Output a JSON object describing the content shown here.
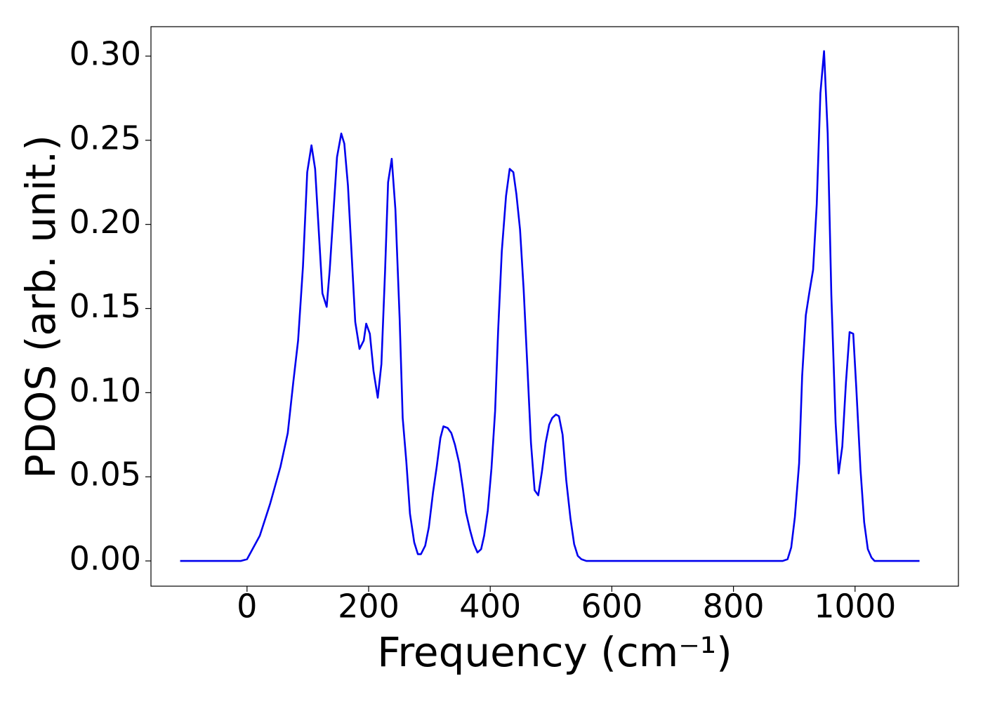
{
  "chart_data": {
    "type": "line",
    "x_label": "Frequency (cm⁻¹)",
    "y_label": "PDOS (arb. unit.)",
    "color": "#0000ee",
    "x": [
      -110,
      -10,
      0,
      21,
      38,
      55,
      67,
      76,
      84,
      92,
      99,
      106,
      112,
      124,
      131,
      136,
      148,
      155,
      160,
      166,
      178,
      185,
      192,
      196,
      202,
      208,
      215,
      221,
      227,
      232,
      238,
      244,
      251,
      256,
      262,
      268,
      275,
      281,
      286,
      293,
      299,
      306,
      312,
      318,
      323,
      330,
      336,
      342,
      349,
      355,
      360,
      367,
      373,
      379,
      385,
      390,
      396,
      402,
      408,
      413,
      419,
      426,
      432,
      438,
      443,
      449,
      455,
      461,
      467,
      473,
      479,
      485,
      491,
      497,
      502,
      508,
      513,
      519,
      525,
      532,
      538,
      544,
      550,
      558,
      881,
      889,
      895,
      901,
      908,
      913,
      919,
      925,
      931,
      937,
      943,
      949,
      955,
      961,
      968,
      973,
      979,
      985,
      991,
      997,
      1002,
      1009,
      1015,
      1021,
      1027,
      1032,
      1106
    ],
    "values": [
      0,
      0,
      0.001,
      0.015,
      0.034,
      0.056,
      0.076,
      0.106,
      0.131,
      0.175,
      0.231,
      0.247,
      0.233,
      0.159,
      0.151,
      0.173,
      0.24,
      0.254,
      0.248,
      0.223,
      0.142,
      0.126,
      0.131,
      0.141,
      0.135,
      0.113,
      0.097,
      0.117,
      0.172,
      0.225,
      0.239,
      0.209,
      0.144,
      0.085,
      0.059,
      0.028,
      0.011,
      0.004,
      0.004,
      0.009,
      0.02,
      0.041,
      0.056,
      0.073,
      0.08,
      0.079,
      0.076,
      0.069,
      0.058,
      0.043,
      0.029,
      0.018,
      0.01,
      0.005,
      0.007,
      0.015,
      0.03,
      0.055,
      0.089,
      0.137,
      0.184,
      0.217,
      0.233,
      0.231,
      0.218,
      0.197,
      0.161,
      0.116,
      0.07,
      0.042,
      0.039,
      0.053,
      0.07,
      0.081,
      0.085,
      0.087,
      0.086,
      0.075,
      0.048,
      0.025,
      0.01,
      0.003,
      0.001,
      0,
      0,
      0.001,
      0.008,
      0.026,
      0.058,
      0.11,
      0.146,
      0.16,
      0.173,
      0.212,
      0.278,
      0.303,
      0.254,
      0.158,
      0.082,
      0.052,
      0.068,
      0.106,
      0.136,
      0.135,
      0.103,
      0.054,
      0.023,
      0.007,
      0.002,
      0,
      0
    ],
    "xlim": [
      -158,
      1170
    ],
    "xticks": [
      0,
      200,
      400,
      600,
      800,
      1000
    ],
    "ylim": [
      -0.015,
      0.3175
    ],
    "yticks": [
      {
        "value": 0,
        "label": "0.00"
      },
      {
        "value": 0.05,
        "label": "0.05"
      },
      {
        "value": 0.1,
        "label": "0.10"
      },
      {
        "value": 0.15,
        "label": "0.15"
      },
      {
        "value": 0.2,
        "label": "0.20"
      },
      {
        "value": 0.25,
        "label": "0.25"
      },
      {
        "value": 0.3,
        "label": "0.30"
      }
    ],
    "grid": false
  }
}
